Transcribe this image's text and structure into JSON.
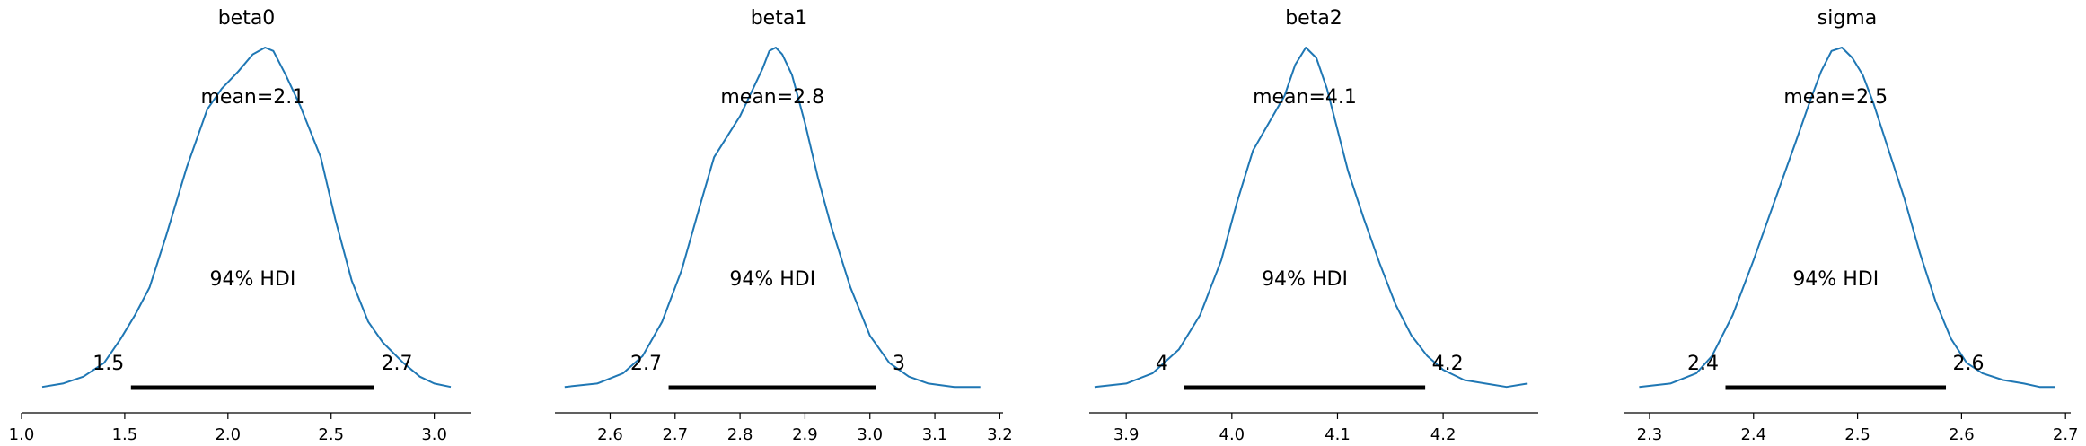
{
  "chart_data": [
    {
      "type": "area",
      "title": "beta0",
      "xlabel": "",
      "ylabel": "",
      "grid": false,
      "xlim": [
        1.0,
        3.18
      ],
      "xticks": [
        1.0,
        1.5,
        2.0,
        2.5,
        3.0
      ],
      "xtick_labels": [
        "1.0",
        "1.5",
        "2.0",
        "2.5",
        "3.0"
      ],
      "mean_label": "mean=2.1",
      "hdi_label": "94% HDI",
      "hdi": [
        1.53,
        2.71
      ],
      "hdi_labels": [
        "1.5",
        "2.7"
      ],
      "density": {
        "x": [
          1.1,
          1.2,
          1.3,
          1.4,
          1.48,
          1.55,
          1.62,
          1.7,
          1.8,
          1.9,
          1.97,
          2.05,
          2.12,
          2.18,
          2.22,
          2.28,
          2.35,
          2.45,
          2.52,
          2.6,
          2.68,
          2.75,
          2.85,
          2.93,
          3.0,
          3.08
        ],
        "y": [
          0.01,
          0.02,
          0.04,
          0.08,
          0.15,
          0.22,
          0.3,
          0.45,
          0.65,
          0.82,
          0.88,
          0.93,
          0.98,
          1.0,
          0.99,
          0.92,
          0.83,
          0.68,
          0.5,
          0.32,
          0.2,
          0.14,
          0.08,
          0.04,
          0.02,
          0.01
        ]
      }
    },
    {
      "type": "area",
      "title": "beta1",
      "xlabel": "",
      "ylabel": "",
      "grid": false,
      "xlim": [
        2.515,
        3.205
      ],
      "xticks": [
        2.6,
        2.7,
        2.8,
        2.9,
        3.0,
        3.1,
        3.2
      ],
      "xtick_labels": [
        "2.6",
        "2.7",
        "2.8",
        "2.9",
        "3.0",
        "3.1",
        "3.2"
      ],
      "mean_label": "mean=2.8",
      "hdi_label": "94% HDI",
      "hdi": [
        2.69,
        3.01
      ],
      "hdi_labels": [
        "2.7",
        "3"
      ],
      "density": {
        "x": [
          2.53,
          2.58,
          2.62,
          2.65,
          2.68,
          2.71,
          2.74,
          2.76,
          2.78,
          2.8,
          2.82,
          2.835,
          2.845,
          2.855,
          2.865,
          2.88,
          2.9,
          2.92,
          2.94,
          2.97,
          3.0,
          3.03,
          3.06,
          3.09,
          3.13,
          3.17
        ],
        "y": [
          0.01,
          0.02,
          0.05,
          0.1,
          0.2,
          0.35,
          0.55,
          0.68,
          0.74,
          0.8,
          0.88,
          0.94,
          0.99,
          1.0,
          0.98,
          0.92,
          0.78,
          0.62,
          0.48,
          0.3,
          0.16,
          0.08,
          0.04,
          0.02,
          0.01,
          0.01
        ]
      }
    },
    {
      "type": "area",
      "title": "beta2",
      "xlabel": "",
      "ylabel": "",
      "grid": false,
      "xlim": [
        3.865,
        4.29
      ],
      "xticks": [
        3.9,
        4.0,
        4.1,
        4.2
      ],
      "xtick_labels": [
        "3.9",
        "4.0",
        "4.1",
        "4.2"
      ],
      "mean_label": "mean=4.1",
      "hdi_label": "94% HDI",
      "hdi": [
        3.955,
        4.183
      ],
      "hdi_labels": [
        "4",
        "4.2"
      ],
      "density": {
        "x": [
          3.87,
          3.9,
          3.925,
          3.95,
          3.97,
          3.99,
          4.005,
          4.02,
          4.035,
          4.05,
          4.06,
          4.07,
          4.08,
          4.09,
          4.1,
          4.11,
          4.125,
          4.14,
          4.155,
          4.17,
          4.185,
          4.2,
          4.22,
          4.24,
          4.26,
          4.28
        ],
        "y": [
          0.01,
          0.02,
          0.05,
          0.12,
          0.22,
          0.38,
          0.55,
          0.7,
          0.78,
          0.86,
          0.95,
          1.0,
          0.97,
          0.88,
          0.76,
          0.64,
          0.5,
          0.37,
          0.25,
          0.16,
          0.1,
          0.06,
          0.03,
          0.02,
          0.01,
          0.02
        ]
      }
    },
    {
      "type": "area",
      "title": "sigma",
      "xlabel": "",
      "ylabel": "",
      "grid": false,
      "xlim": [
        2.275,
        2.705
      ],
      "xticks": [
        2.3,
        2.4,
        2.5,
        2.6,
        2.7
      ],
      "xtick_labels": [
        "2.3",
        "2.4",
        "2.5",
        "2.6",
        "2.7"
      ],
      "mean_label": "mean=2.5",
      "hdi_label": "94% HDI",
      "hdi": [
        2.373,
        2.585
      ],
      "hdi_labels": [
        "2.4",
        "2.6"
      ],
      "density": {
        "x": [
          2.29,
          2.32,
          2.345,
          2.36,
          2.38,
          2.4,
          2.42,
          2.44,
          2.455,
          2.465,
          2.475,
          2.485,
          2.495,
          2.505,
          2.515,
          2.53,
          2.545,
          2.56,
          2.575,
          2.59,
          2.605,
          2.62,
          2.64,
          2.66,
          2.675,
          2.69
        ],
        "y": [
          0.01,
          0.02,
          0.05,
          0.1,
          0.22,
          0.38,
          0.55,
          0.72,
          0.85,
          0.93,
          0.99,
          1.0,
          0.97,
          0.92,
          0.84,
          0.7,
          0.56,
          0.4,
          0.26,
          0.15,
          0.08,
          0.05,
          0.03,
          0.02,
          0.01,
          0.01
        ]
      }
    }
  ]
}
